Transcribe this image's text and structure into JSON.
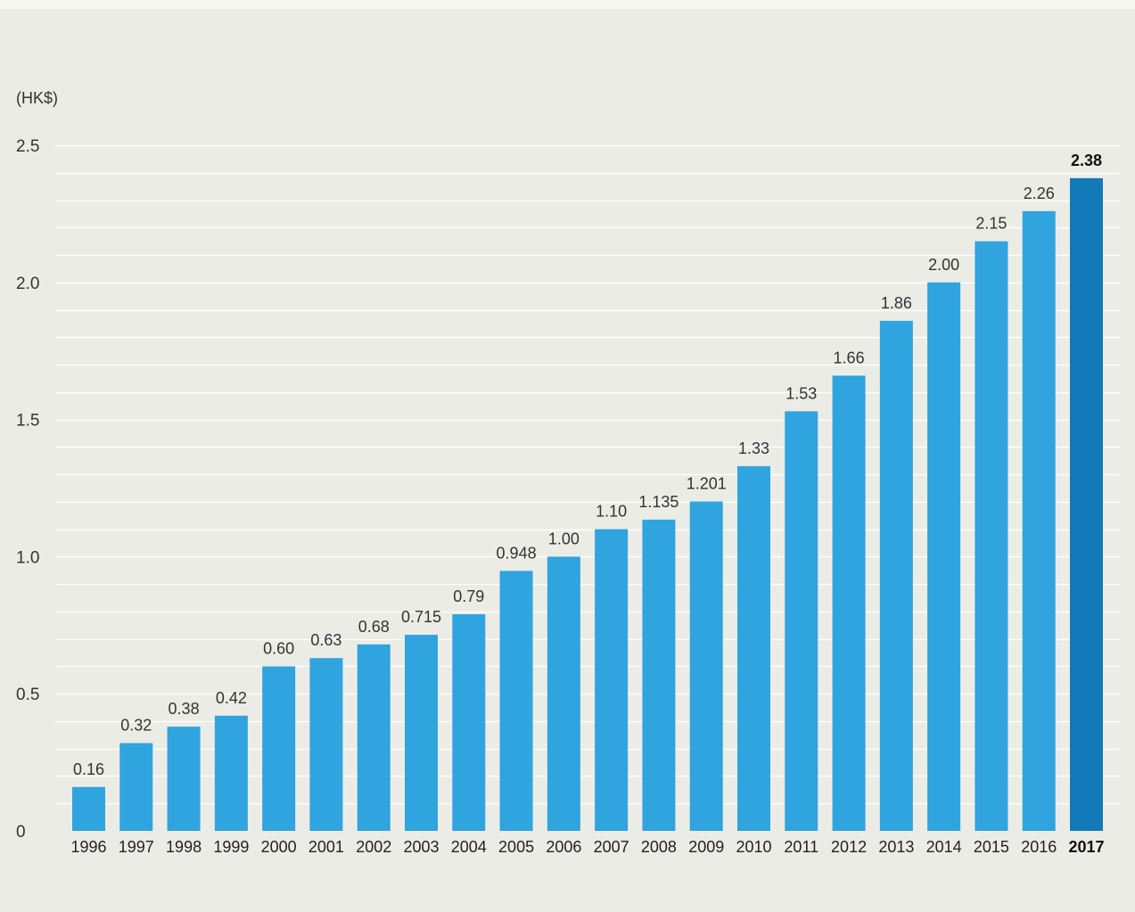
{
  "chart_data": {
    "type": "bar",
    "unit_label": "(HK$)",
    "categories": [
      "1996",
      "1997",
      "1998",
      "1999",
      "2000",
      "2001",
      "2002",
      "2003",
      "2004",
      "2005",
      "2006",
      "2007",
      "2008",
      "2009",
      "2010",
      "2011",
      "2012",
      "2013",
      "2014",
      "2015",
      "2016",
      "2017"
    ],
    "values": [
      0.16,
      0.32,
      0.38,
      0.42,
      0.6,
      0.63,
      0.68,
      0.715,
      0.79,
      0.948,
      1.0,
      1.1,
      1.135,
      1.201,
      1.33,
      1.53,
      1.66,
      1.86,
      2.0,
      2.15,
      2.26,
      2.38
    ],
    "value_labels": [
      "0.16",
      "0.32",
      "0.38",
      "0.42",
      "0.60",
      "0.63",
      "0.68",
      "0.715",
      "0.79",
      "0.948",
      "1.00",
      "1.10",
      "1.135",
      "1.201",
      "1.33",
      "1.53",
      "1.66",
      "1.86",
      "2.00",
      "2.15",
      "2.26",
      "2.38"
    ],
    "y_ticks": [
      "0",
      "0.5",
      "1.0",
      "1.5",
      "2.0",
      "2.5"
    ],
    "ylim": [
      0,
      2.5
    ],
    "grid": true,
    "highlight_category": "2017",
    "colors": {
      "bar": "#2fa4de",
      "bar_highlight": "#127ab8",
      "grid": "#ffffff",
      "background": "#ececE7"
    }
  }
}
